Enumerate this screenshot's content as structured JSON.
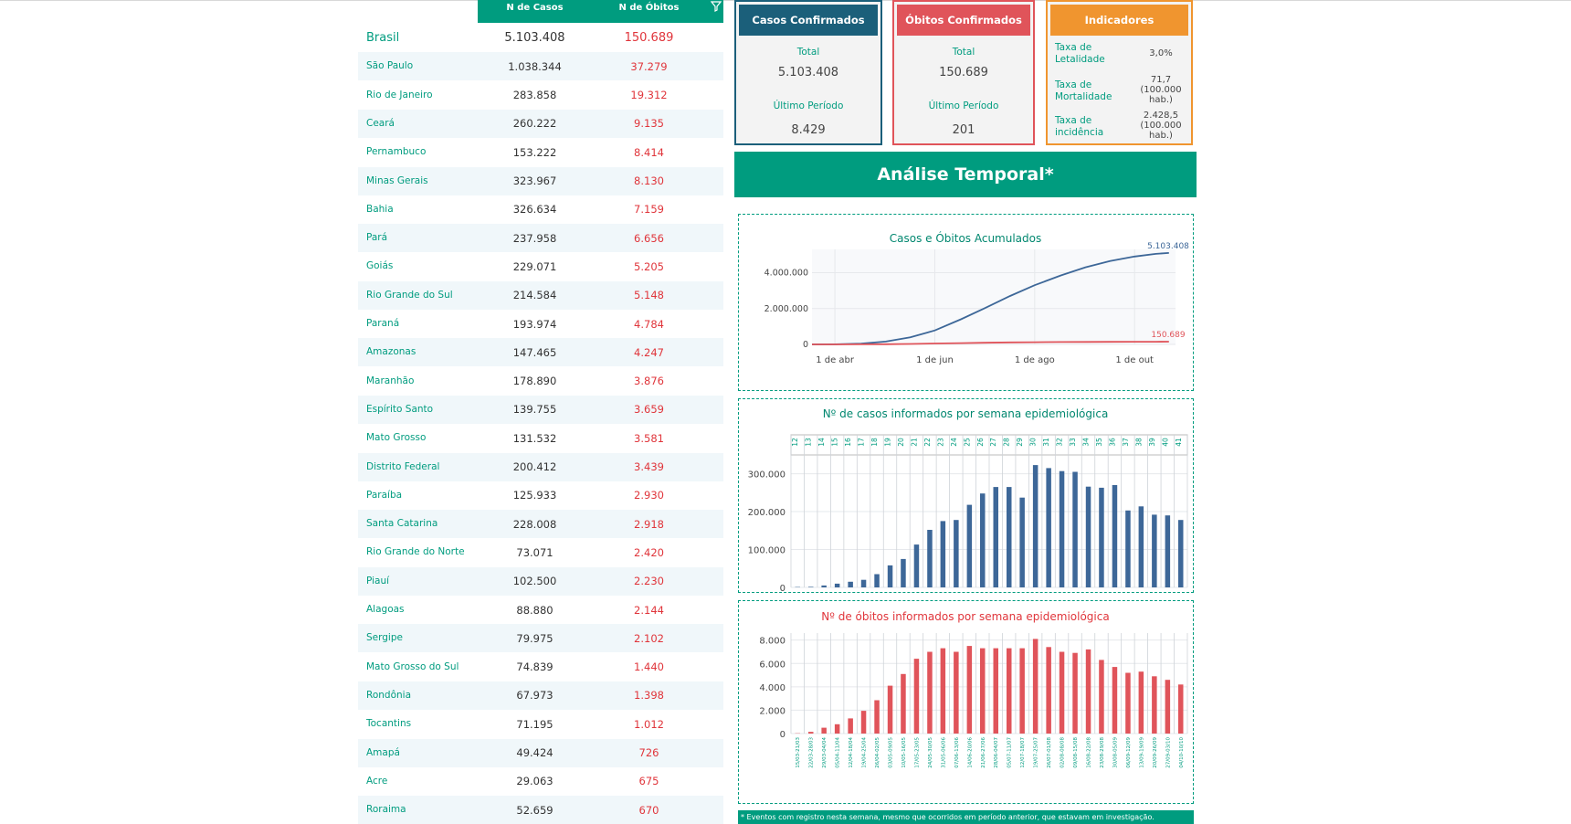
{
  "table": {
    "col_casos": "N de Casos",
    "col_obitos": "N de Óbitos",
    "rows": [
      {
        "name": "Brasil",
        "casos": "5.103.408",
        "obitos": "150.689"
      },
      {
        "name": "São Paulo",
        "casos": "1.038.344",
        "obitos": "37.279"
      },
      {
        "name": "Rio de Janeiro",
        "casos": "283.858",
        "obitos": "19.312"
      },
      {
        "name": "Ceará",
        "casos": "260.222",
        "obitos": "9.135"
      },
      {
        "name": "Pernambuco",
        "casos": "153.222",
        "obitos": "8.414"
      },
      {
        "name": "Minas Gerais",
        "casos": "323.967",
        "obitos": "8.130"
      },
      {
        "name": "Bahia",
        "casos": "326.634",
        "obitos": "7.159"
      },
      {
        "name": "Pará",
        "casos": "237.958",
        "obitos": "6.656"
      },
      {
        "name": "Goiás",
        "casos": "229.071",
        "obitos": "5.205"
      },
      {
        "name": "Rio Grande do Sul",
        "casos": "214.584",
        "obitos": "5.148"
      },
      {
        "name": "Paraná",
        "casos": "193.974",
        "obitos": "4.784"
      },
      {
        "name": "Amazonas",
        "casos": "147.465",
        "obitos": "4.247"
      },
      {
        "name": "Maranhão",
        "casos": "178.890",
        "obitos": "3.876"
      },
      {
        "name": "Espírito Santo",
        "casos": "139.755",
        "obitos": "3.659"
      },
      {
        "name": "Mato Grosso",
        "casos": "131.532",
        "obitos": "3.581"
      },
      {
        "name": "Distrito Federal",
        "casos": "200.412",
        "obitos": "3.439"
      },
      {
        "name": "Paraíba",
        "casos": "125.933",
        "obitos": "2.930"
      },
      {
        "name": "Santa Catarina",
        "casos": "228.008",
        "obitos": "2.918"
      },
      {
        "name": "Rio Grande do Norte",
        "casos": "73.071",
        "obitos": "2.420"
      },
      {
        "name": "Piauí",
        "casos": "102.500",
        "obitos": "2.230"
      },
      {
        "name": "Alagoas",
        "casos": "88.880",
        "obitos": "2.144"
      },
      {
        "name": "Sergipe",
        "casos": "79.975",
        "obitos": "2.102"
      },
      {
        "name": "Mato Grosso do Sul",
        "casos": "74.839",
        "obitos": "1.440"
      },
      {
        "name": "Rondônia",
        "casos": "67.973",
        "obitos": "1.398"
      },
      {
        "name": "Tocantins",
        "casos": "71.195",
        "obitos": "1.012"
      },
      {
        "name": "Amapá",
        "casos": "49.424",
        "obitos": "726"
      },
      {
        "name": "Acre",
        "casos": "29.063",
        "obitos": "675"
      },
      {
        "name": "Roraima",
        "casos": "52.659",
        "obitos": "670"
      }
    ]
  },
  "cards": {
    "confirmados": {
      "title": "Casos Confirmados",
      "total_label": "Total",
      "total": "5.103.408",
      "periodo_label": "Último Período",
      "periodo": "8.429"
    },
    "obitos": {
      "title": "Óbitos Confirmados",
      "total_label": "Total",
      "total": "150.689",
      "periodo_label": "Último Período",
      "periodo": "201"
    },
    "indicadores": {
      "title": "Indicadores",
      "items": [
        {
          "label": "Taxa de Letalidade",
          "value": "3,0%"
        },
        {
          "label": "Taxa de Mortalidade",
          "value": "71,7 (100.000 hab.)"
        },
        {
          "label": "Taxa de incidência",
          "value": "2.428,5 (100.000 hab.)"
        }
      ]
    }
  },
  "banner": "Análise Temporal*",
  "footnote": "* Eventos com registro nesta semana, mesmo que ocorridos em período anterior, que estavam em investigação.",
  "colors": {
    "accent": "#009c7f",
    "casos": "#3d6798",
    "obitos": "#e0545a",
    "indicadores": "#f0952f",
    "confirmados": "#1b5f7a"
  },
  "chart_data": [
    {
      "type": "line",
      "title": "Casos e Óbitos Acumulados",
      "x_ticks": [
        "1 de abr",
        "1 de jun",
        "1 de ago",
        "1 de out"
      ],
      "y_ticks": [
        "0",
        "2.000.000",
        "4.000.000"
      ],
      "ylim": [
        0,
        5300000
      ],
      "xlim_days": [
        0,
        222
      ],
      "series": [
        {
          "name": "",
          "color": "#3d6798",
          "end_label": "5.103.408",
          "points": [
            [
              0,
              0
            ],
            [
              14,
              3400
            ],
            [
              30,
              40000
            ],
            [
              45,
              160000
            ],
            [
              60,
              400000
            ],
            [
              75,
              780000
            ],
            [
              91,
              1400000
            ],
            [
              105,
              2000000
            ],
            [
              121,
              2700000
            ],
            [
              136,
              3300000
            ],
            [
              152,
              3850000
            ],
            [
              167,
              4300000
            ],
            [
              182,
              4650000
            ],
            [
              197,
              4900000
            ],
            [
              210,
              5050000
            ],
            [
              218,
              5103408
            ]
          ]
        },
        {
          "name": "",
          "color": "#e0545a",
          "end_label": "150.689",
          "points": [
            [
              0,
              0
            ],
            [
              14,
              100
            ],
            [
              30,
              2900
            ],
            [
              45,
              11000
            ],
            [
              60,
              27000
            ],
            [
              75,
              50000
            ],
            [
              91,
              72000
            ],
            [
              105,
              93000
            ],
            [
              121,
              110000
            ],
            [
              136,
              122000
            ],
            [
              152,
              132000
            ],
            [
              167,
              139000
            ],
            [
              182,
              145000
            ],
            [
              197,
              148500
            ],
            [
              210,
              150200
            ],
            [
              218,
              150689
            ]
          ]
        }
      ],
      "grid": true
    },
    {
      "type": "bar",
      "title": "Nº de casos informados por semana epidemiológica",
      "categories": [
        "12",
        "13",
        "14",
        "15",
        "16",
        "17",
        "18",
        "19",
        "20",
        "21",
        "22",
        "23",
        "24",
        "25",
        "26",
        "27",
        "28",
        "29",
        "30",
        "31",
        "32",
        "33",
        "34",
        "35",
        "36",
        "37",
        "38",
        "39",
        "40",
        "41"
      ],
      "values": [
        1000,
        1500,
        5000,
        10000,
        15000,
        20000,
        35000,
        58000,
        75000,
        113000,
        152000,
        175000,
        178000,
        218000,
        248000,
        265000,
        265000,
        237000,
        323000,
        315000,
        307000,
        305000,
        266000,
        263000,
        270000,
        203000,
        214000,
        192000,
        190000,
        178000
      ],
      "y_ticks": [
        "0",
        "100.000",
        "200.000",
        "300.000"
      ],
      "ylim": [
        0,
        340000
      ],
      "color": "#3d6798",
      "grid": true
    },
    {
      "type": "bar",
      "title": "Nº de óbitos informados por semana epidemiológica",
      "categories": [
        "15/03-21/03",
        "22/03-28/03",
        "29/03-04/04",
        "05/04-11/04",
        "12/04-18/04",
        "19/04-25/04",
        "26/04-02/05",
        "03/05-09/05",
        "10/05-16/05",
        "17/05-23/05",
        "24/05-30/05",
        "31/05-06/06",
        "07/06-13/06",
        "14/06-20/06",
        "21/06-27/06",
        "28/06-04/07",
        "05/07-11/07",
        "12/07-18/07",
        "19/07-25/07",
        "26/07-01/08",
        "02/08-08/08",
        "09/08-15/08",
        "16/08-22/08",
        "23/08-29/08",
        "30/08-05/09",
        "06/09-12/09",
        "13/09-19/09",
        "20/09-26/09",
        "27/09-03/10",
        "04/10-10/10"
      ],
      "values": [
        25,
        150,
        500,
        800,
        1300,
        1950,
        2850,
        4100,
        5100,
        6400,
        7000,
        7300,
        7000,
        7500,
        7300,
        7300,
        7300,
        7300,
        8100,
        7400,
        7000,
        6900,
        7200,
        6300,
        5700,
        5200,
        5300,
        4900,
        4600,
        4200
      ],
      "y_ticks": [
        "0",
        "2.000",
        "4.000",
        "6.000",
        "8.000"
      ],
      "ylim": [
        0,
        8600
      ],
      "color": "#e0545a",
      "grid": true
    }
  ]
}
